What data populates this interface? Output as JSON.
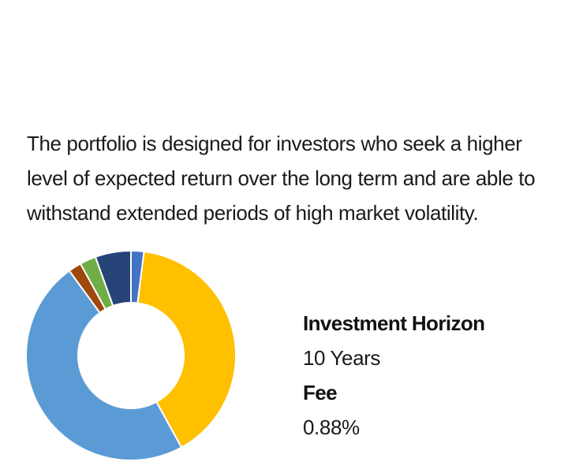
{
  "description": "The portfolio is designed for investors who seek a higher level of expected return over the long term and are able to withstand extended periods of high market volatility.",
  "details": {
    "horizon_label": "Investment Horizon",
    "horizon_value": "10 Years",
    "fee_label": "Fee",
    "fee_value": "0.88%"
  },
  "chart_data": {
    "type": "pie",
    "donut": true,
    "title": "",
    "slices": [
      {
        "value": 2,
        "color": "#4472C4"
      },
      {
        "value": 40,
        "color": "#FFC000"
      },
      {
        "value": 48,
        "color": "#5B9BD5"
      },
      {
        "value": 2,
        "color": "#9E480E"
      },
      {
        "value": 2.5,
        "color": "#70AD47"
      },
      {
        "value": 5.5,
        "color": "#264478"
      }
    ]
  }
}
